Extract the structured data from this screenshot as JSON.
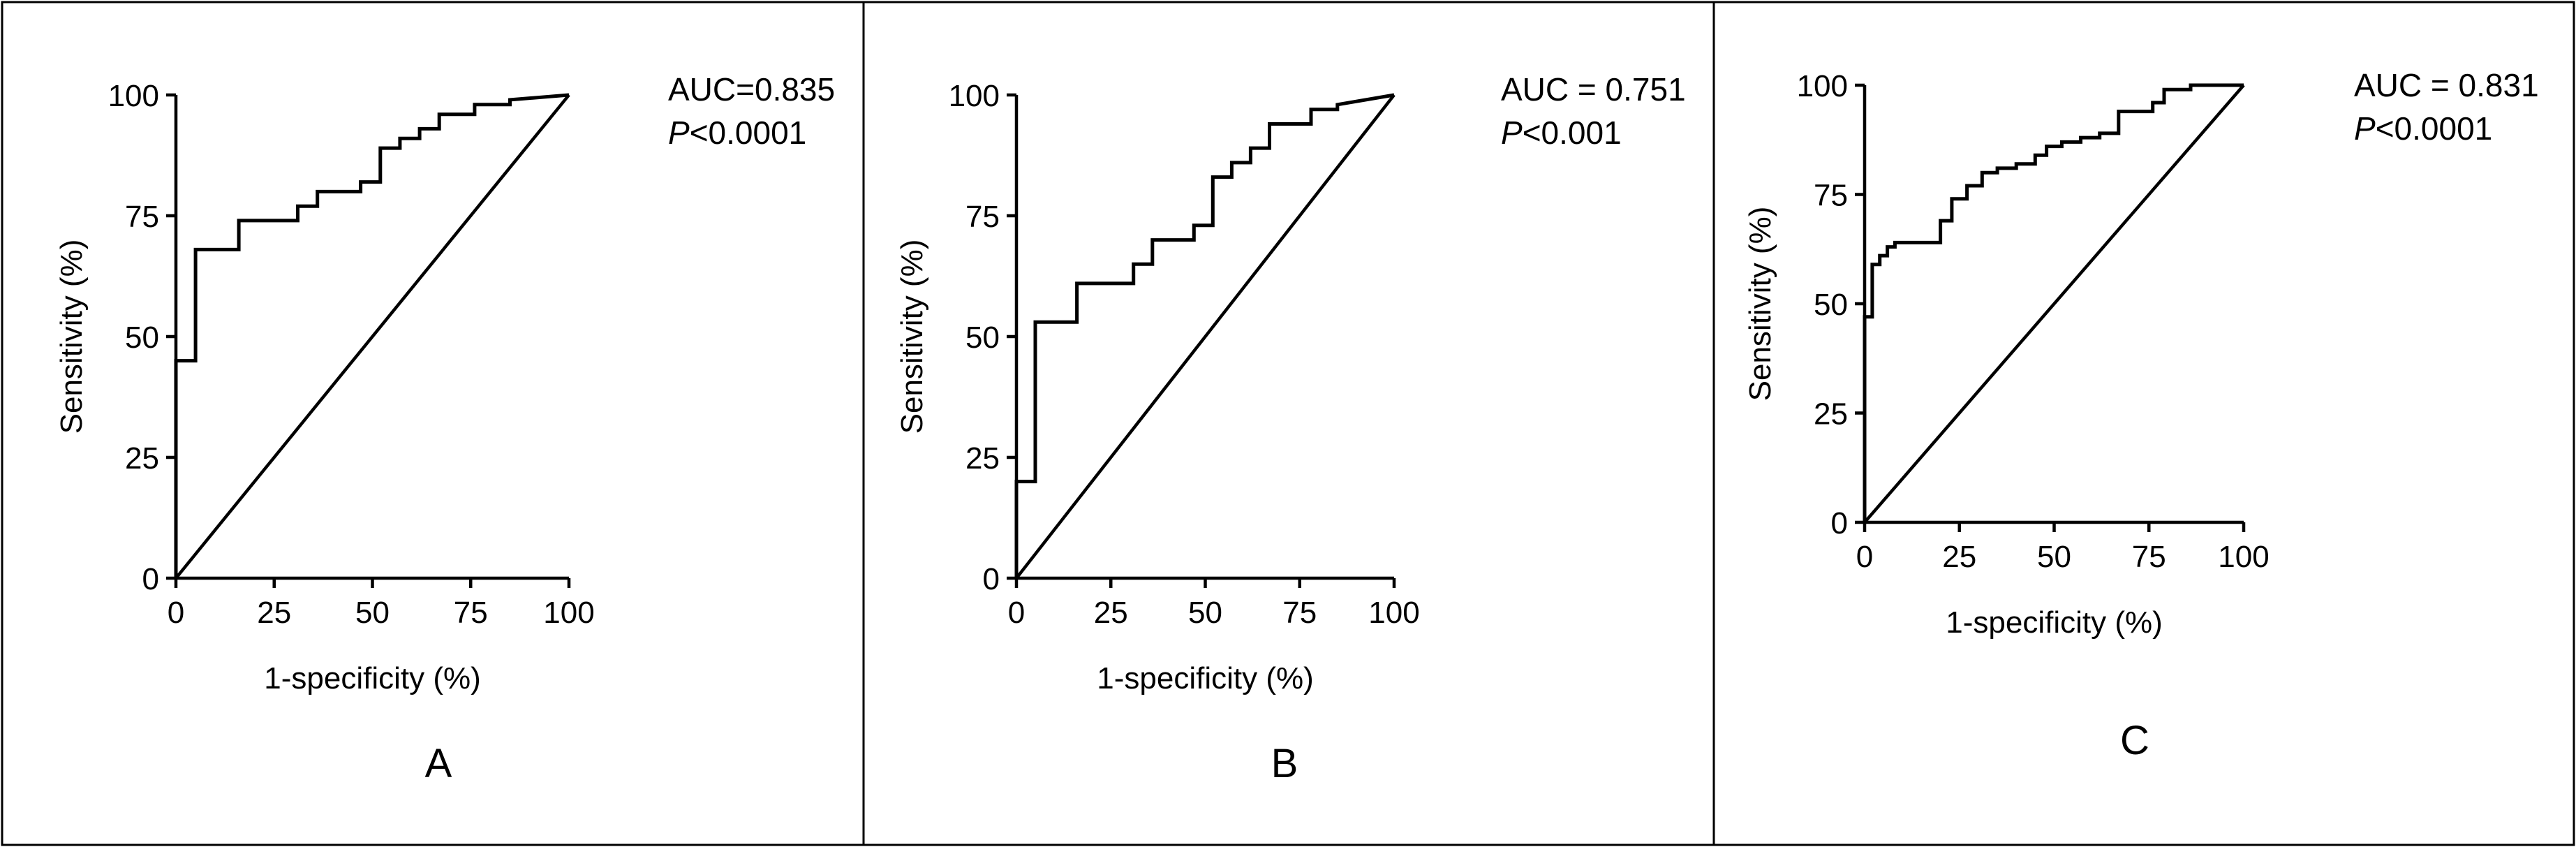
{
  "chart_data": [
    {
      "type": "line",
      "panel_label": "A",
      "xlabel": "1-specificity (%)",
      "ylabel": "Sensitivity (%)",
      "xlim": [
        0,
        100
      ],
      "ylim": [
        0,
        100
      ],
      "xticks": [
        "0",
        "25",
        "50",
        "75",
        "100"
      ],
      "yticks": [
        "0",
        "25",
        "50",
        "75",
        "100"
      ],
      "annotation": {
        "auc": "AUC=0.835",
        "p_italic": "P",
        "p_rest": "<0.0001"
      },
      "reference_line": {
        "x": [
          0,
          100
        ],
        "y": [
          0,
          100
        ]
      },
      "series": [
        {
          "x": [
            0,
            0,
            5,
            5,
            16,
            16,
            31,
            31,
            36,
            36,
            47,
            47,
            52,
            52,
            57,
            57,
            62,
            62,
            67,
            67,
            76,
            76,
            85,
            85,
            100
          ],
          "y": [
            0,
            45,
            45,
            68,
            68,
            74,
            74,
            77,
            77,
            80,
            80,
            82,
            82,
            89,
            89,
            91,
            91,
            93,
            93,
            96,
            96,
            98,
            98,
            99,
            100
          ]
        }
      ]
    },
    {
      "type": "line",
      "panel_label": "B",
      "xlabel": "1-specificity (%)",
      "ylabel": "Sensitivity (%)",
      "xlim": [
        0,
        100
      ],
      "ylim": [
        0,
        100
      ],
      "xticks": [
        "0",
        "25",
        "50",
        "75",
        "100"
      ],
      "yticks": [
        "0",
        "25",
        "50",
        "75",
        "100"
      ],
      "annotation": {
        "auc": "AUC = 0.751",
        "p_italic": "P",
        "p_rest": "<0.001"
      },
      "reference_line": {
        "x": [
          0,
          100
        ],
        "y": [
          0,
          100
        ]
      },
      "series": [
        {
          "x": [
            0,
            0,
            5,
            5,
            16,
            16,
            31,
            31,
            36,
            36,
            47,
            47,
            52,
            52,
            57,
            57,
            62,
            62,
            67,
            67,
            78,
            78,
            85,
            85,
            100
          ],
          "y": [
            0,
            20,
            20,
            53,
            53,
            61,
            61,
            65,
            65,
            70,
            70,
            73,
            73,
            83,
            83,
            86,
            86,
            89,
            89,
            94,
            94,
            97,
            97,
            98,
            100
          ]
        }
      ]
    },
    {
      "type": "line",
      "panel_label": "C",
      "xlabel": "1-specificity (%)",
      "ylabel": "Sensitivity (%)",
      "xlim": [
        0,
        100
      ],
      "ylim": [
        0,
        100
      ],
      "xticks": [
        "0",
        "25",
        "50",
        "75",
        "100"
      ],
      "yticks": [
        "0",
        "25",
        "50",
        "75",
        "100"
      ],
      "annotation": {
        "auc": "AUC = 0.831",
        "p_italic": "P",
        "p_rest": "<0.0001"
      },
      "reference_line": {
        "x": [
          0,
          100
        ],
        "y": [
          0,
          100
        ]
      },
      "series": [
        {
          "x": [
            0,
            0,
            2,
            2,
            4,
            4,
            6,
            6,
            8,
            8,
            20,
            20,
            23,
            23,
            27,
            27,
            31,
            31,
            35,
            35,
            40,
            40,
            45,
            45,
            48,
            48,
            52,
            52,
            57,
            57,
            62,
            62,
            67,
            67,
            76,
            76,
            79,
            79,
            86,
            86,
            100
          ],
          "y": [
            0,
            47,
            47,
            59,
            59,
            61,
            61,
            63,
            63,
            64,
            64,
            69,
            69,
            74,
            74,
            77,
            77,
            80,
            80,
            81,
            81,
            82,
            82,
            84,
            84,
            86,
            86,
            87,
            87,
            88,
            88,
            89,
            89,
            94,
            94,
            96,
            96,
            99,
            99,
            100,
            100
          ]
        }
      ]
    }
  ]
}
